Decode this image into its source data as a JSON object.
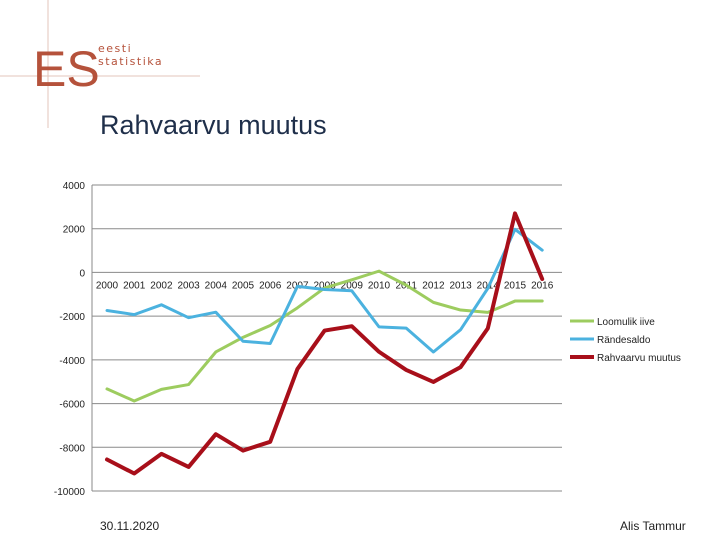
{
  "logo": {
    "mark": "ES",
    "line1": "eesti",
    "line2": "statistika",
    "accent_color": "#b5523b"
  },
  "slide": {
    "title": "Rahvaarvu muutus",
    "date": "30.11.2020",
    "author": "Alis Tammur"
  },
  "chart_data": {
    "type": "line",
    "title": "Rahvaarvu muutus",
    "x": [
      "2000",
      "2001",
      "2002",
      "2003",
      "2004",
      "2005",
      "2006",
      "2007",
      "2008",
      "2009",
      "2010",
      "2011",
      "2012",
      "2013",
      "2014",
      "2015",
      "2016"
    ],
    "ylim": [
      -10000,
      4000
    ],
    "yticks": [
      4000,
      2000,
      0,
      -2000,
      -4000,
      -6000,
      -8000,
      -10000
    ],
    "grid": true,
    "legend": "right",
    "series": [
      {
        "name": "Loomulik iive",
        "color": "#9dcc5f",
        "width": 3,
        "values": [
          -5330,
          -5880,
          -5350,
          -5130,
          -3640,
          -2970,
          -2430,
          -1620,
          -710,
          -340,
          60,
          -580,
          -1370,
          -1720,
          -1830,
          -1310,
          -1310
        ]
      },
      {
        "name": "Rändesaldo",
        "color": "#4bb2df",
        "width": 3,
        "values": [
          -1740,
          -1930,
          -1480,
          -2070,
          -1820,
          -3150,
          -3250,
          -640,
          -780,
          -840,
          -2490,
          -2550,
          -3640,
          -2620,
          -730,
          1970,
          1020
        ]
      },
      {
        "name": "Rahvaarvu muutus",
        "color": "#a80f1a",
        "width": 4,
        "values": [
          -8560,
          -9200,
          -8300,
          -8900,
          -7400,
          -8150,
          -7750,
          -4420,
          -2660,
          -2460,
          -3630,
          -4460,
          -5010,
          -4330,
          -2560,
          2700,
          -300
        ]
      }
    ]
  }
}
